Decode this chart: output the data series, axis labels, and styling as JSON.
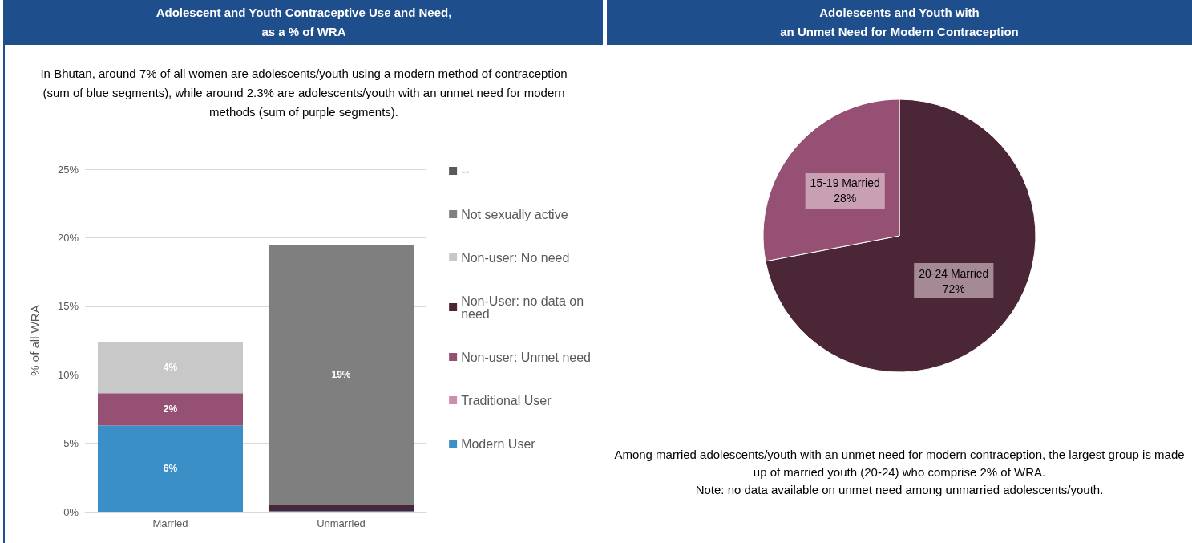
{
  "chart_data": [
    {
      "type": "bar",
      "title": "Adolescent and Youth Contraceptive Use and Need,\nas a % of WRA",
      "subtitle": "In Bhutan, around 7% of all women are adolescents/youth using a modern method of contraception (sum of blue segments), while around 2.3% are adolescents/youth with an unmet need for modern methods (sum of purple segments).",
      "ylabel": "% of all WRA",
      "categories": [
        "Married",
        "Unmarried"
      ],
      "stacked": true,
      "ylim": [
        0,
        25
      ],
      "yticks": [
        {
          "value": 0,
          "label": "0%"
        },
        {
          "value": 5,
          "label": "5%"
        },
        {
          "value": 10,
          "label": "10%"
        },
        {
          "value": 15,
          "label": "15%"
        },
        {
          "value": 20,
          "label": "20%"
        },
        {
          "value": 25,
          "label": "25%"
        }
      ],
      "grid": "y",
      "legend": "right",
      "series": [
        {
          "name": "Modern User",
          "color": "#3a8fc7",
          "values": [
            6.3,
            0.05
          ],
          "value_labels": [
            "6%",
            null
          ]
        },
        {
          "name": "Traditional User",
          "color": "#c98fad",
          "values": [
            0,
            0
          ]
        },
        {
          "name": "Non-user: Unmet need",
          "color": "#955073",
          "values": [
            2.35,
            0
          ],
          "value_labels": [
            "2%",
            null
          ]
        },
        {
          "name": "Non-User: no data on need",
          "color": "#4a2637",
          "values": [
            0,
            0.45
          ]
        },
        {
          "name": "Non-user: No need",
          "color": "#c8c8c8",
          "values": [
            3.75,
            0
          ],
          "value_labels": [
            "4%",
            null
          ]
        },
        {
          "name": "Not sexually active",
          "color": "#7f7f7f",
          "values": [
            0,
            19
          ],
          "value_labels": [
            null,
            "19%"
          ]
        },
        {
          "name": "--",
          "color": "#595959",
          "values": [
            0,
            0
          ]
        }
      ]
    },
    {
      "type": "pie",
      "title": "Adolescents and Youth with\nan Unmet Need for Modern Contraception",
      "categories": [
        "20-24 Married",
        "15-19 Married"
      ],
      "values": [
        72,
        28
      ],
      "colors": [
        "#4a2637",
        "#955073"
      ],
      "value_labels": [
        "72%",
        "28%"
      ],
      "legend": false,
      "annotations": [
        "Among married adolescents/youth with an unmet need for modern contraception, the largest group is made up of married youth (20-24) who comprise 2% of WRA.",
        "Note: no data available on unmet need among unmarried adolescents/youth."
      ]
    }
  ]
}
